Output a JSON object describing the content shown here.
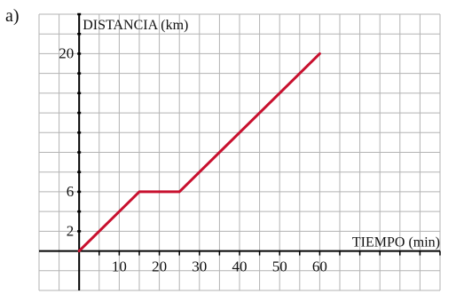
{
  "panel_label": "a)",
  "colors": {
    "grid": "#b3b3b3",
    "axis": "#000000",
    "line": "#c8102e",
    "text": "#111111"
  },
  "chart_data": {
    "type": "line",
    "title": "",
    "xlabel": "TIEMPO (min)",
    "ylabel": "DISTANCIA (km)",
    "xlim": [
      -10,
      90
    ],
    "ylim": [
      -4,
      24
    ],
    "x_grid_step": 5,
    "y_grid_step": 2,
    "grid": true,
    "x_ticks": [
      10,
      20,
      30,
      40,
      50,
      60
    ],
    "y_ticks": [
      2,
      6,
      20
    ],
    "series": [
      {
        "x": [
          0,
          15,
          25,
          60
        ],
        "y": [
          0,
          6,
          6,
          20
        ]
      }
    ]
  }
}
